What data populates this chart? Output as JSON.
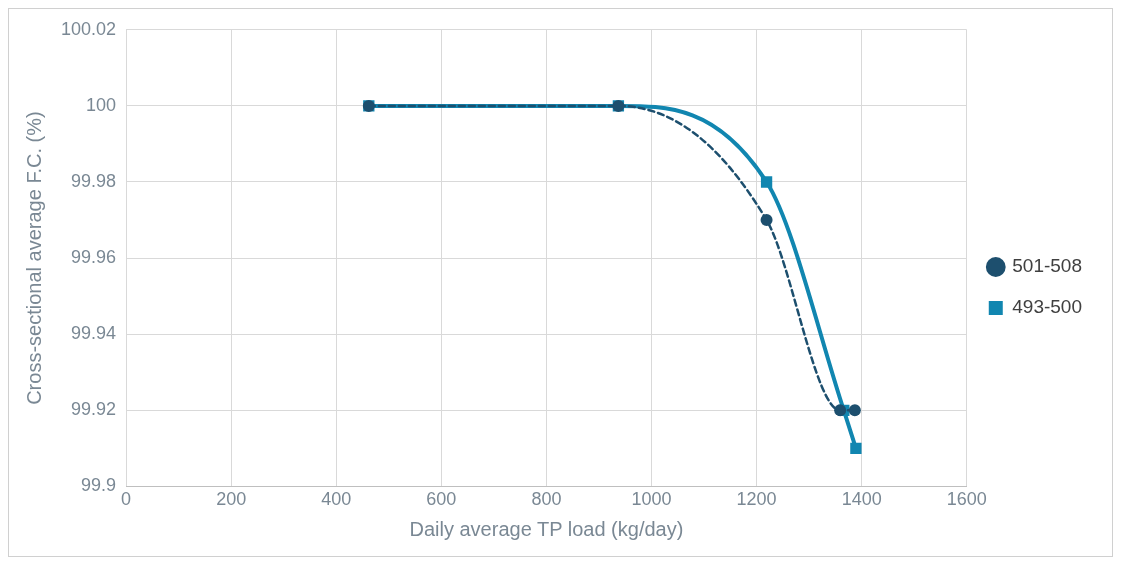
{
  "chart_data": {
    "type": "line",
    "xlabel": "Daily average TP load (kg/day)",
    "ylabel": "Cross-sectional average F.C. (%)",
    "xlim": [
      0,
      1600
    ],
    "xticks": [
      0,
      200,
      400,
      600,
      800,
      1000,
      1200,
      1400,
      1600
    ],
    "ylim": [
      99.9,
      100.02
    ],
    "yticks": [
      {
        "value": 99.9,
        "label": "99.9"
      },
      {
        "value": 99.92,
        "label": "99.92"
      },
      {
        "value": 99.94,
        "label": "99.94"
      },
      {
        "value": 99.96,
        "label": "99.96"
      },
      {
        "value": 99.98,
        "label": "99.98"
      },
      {
        "value": 100,
        "label": "100"
      },
      {
        "value": 100.02,
        "label": "100.02"
      }
    ],
    "grid": true,
    "legend": "right",
    "series": [
      {
        "name": "493-500",
        "color": "#1186b0",
        "marker": "square",
        "line_style": "solid",
        "x": [
          462,
          937,
          1219,
          1366,
          1389
        ],
        "values": [
          100,
          100,
          99.98,
          99.92,
          99.91
        ]
      },
      {
        "name": "501-508",
        "color": "#1d4f6e",
        "marker": "circle",
        "line_style": "dashed",
        "x": [
          462,
          937,
          1219,
          1359,
          1387
        ],
        "values": [
          100,
          100,
          99.97,
          99.92,
          99.92
        ]
      }
    ]
  }
}
